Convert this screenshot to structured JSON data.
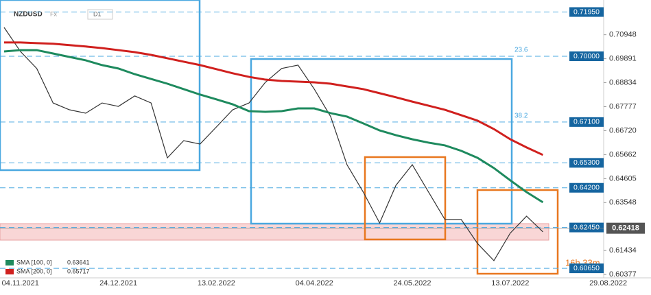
{
  "chart_data": {
    "type": "line",
    "symbol": "NZDUSD",
    "market": "Fx",
    "timeframe": "D1",
    "categories": [
      null,
      "04.11.2021",
      null,
      null,
      null,
      null,
      null,
      "24.12.2021",
      null,
      null,
      null,
      null,
      null,
      "13.02.2022",
      null,
      null,
      null,
      null,
      null,
      "04.04.2022",
      null,
      null,
      null,
      null,
      null,
      "24.05.2022",
      null,
      null,
      null,
      null,
      null,
      "13.07.2022",
      null,
      null,
      null,
      null,
      null,
      "29.08.2022"
    ],
    "series": [
      {
        "name": "NZDUSD",
        "color": "#333333",
        "values": [
          0.7127,
          0.7021,
          0.6946,
          0.6794,
          0.6764,
          0.6749,
          0.6794,
          0.6779,
          0.6825,
          0.6794,
          0.6552,
          0.6628,
          0.6613,
          0.6688,
          0.6764,
          0.6794,
          0.6885,
          0.6946,
          0.6961,
          0.6855,
          0.6734,
          0.6522,
          0.6401,
          0.6265,
          0.6431,
          0.6522,
          0.6401,
          0.628,
          0.628,
          0.6174,
          0.6099,
          0.622,
          0.6295,
          0.6226,
          null,
          null,
          null,
          null
        ]
      },
      {
        "name": "SMA [100, 0]",
        "color": "#1e8a5e",
        "last_label": "0.63641",
        "values": [
          0.7021,
          0.7027,
          0.7027,
          0.7012,
          0.6997,
          0.6982,
          0.6961,
          0.6946,
          0.6921,
          0.69,
          0.6879,
          0.6855,
          0.6831,
          0.681,
          0.6788,
          0.6758,
          0.6755,
          0.6758,
          0.677,
          0.677,
          0.6749,
          0.6734,
          0.6704,
          0.6673,
          0.6652,
          0.6634,
          0.6619,
          0.6607,
          0.6583,
          0.6552,
          0.6507,
          0.6453,
          0.6401,
          0.6356,
          null,
          null,
          null,
          null
        ]
      },
      {
        "name": "SMA [200, 0]",
        "color": "#d0201e",
        "last_label": "0.65717",
        "values": [
          0.7061,
          0.7061,
          0.7058,
          0.7055,
          0.7049,
          0.7043,
          0.7036,
          0.7027,
          0.7018,
          0.7006,
          0.6991,
          0.6976,
          0.6961,
          0.6943,
          0.6925,
          0.6909,
          0.6897,
          0.6891,
          0.6888,
          0.6885,
          0.6879,
          0.6867,
          0.6855,
          0.6837,
          0.6819,
          0.68,
          0.6782,
          0.6764,
          0.674,
          0.6716,
          0.6679,
          0.6634,
          0.6598,
          0.6565,
          null,
          null,
          null,
          null
        ]
      }
    ],
    "ylim": [
      0.6023,
      0.7248
    ],
    "yticks": [
      0.70948,
      0.69891,
      0.68834,
      0.67777,
      {
        "value": 0.6672,
        "label": "0.66720"
      },
      0.65662,
      0.64605,
      0.63548,
      0.61434,
      0.60377
    ],
    "levels": [
      {
        "value": 0.7195,
        "label": "0.71950"
      },
      {
        "value": 0.7,
        "label": "0.70000"
      },
      {
        "value": 0.671,
        "label": "0.67100"
      },
      {
        "value": 0.653,
        "label": "0.65300"
      },
      {
        "value": 0.642,
        "label": "0.64200"
      },
      {
        "value": 0.6245,
        "label": "0.62450"
      },
      {
        "value": 0.6065,
        "label": "0.60650"
      }
    ],
    "fib_labels": [
      "23.6",
      "38.2"
    ],
    "current_price": 0.62418,
    "countdown": "16h 33m"
  }
}
